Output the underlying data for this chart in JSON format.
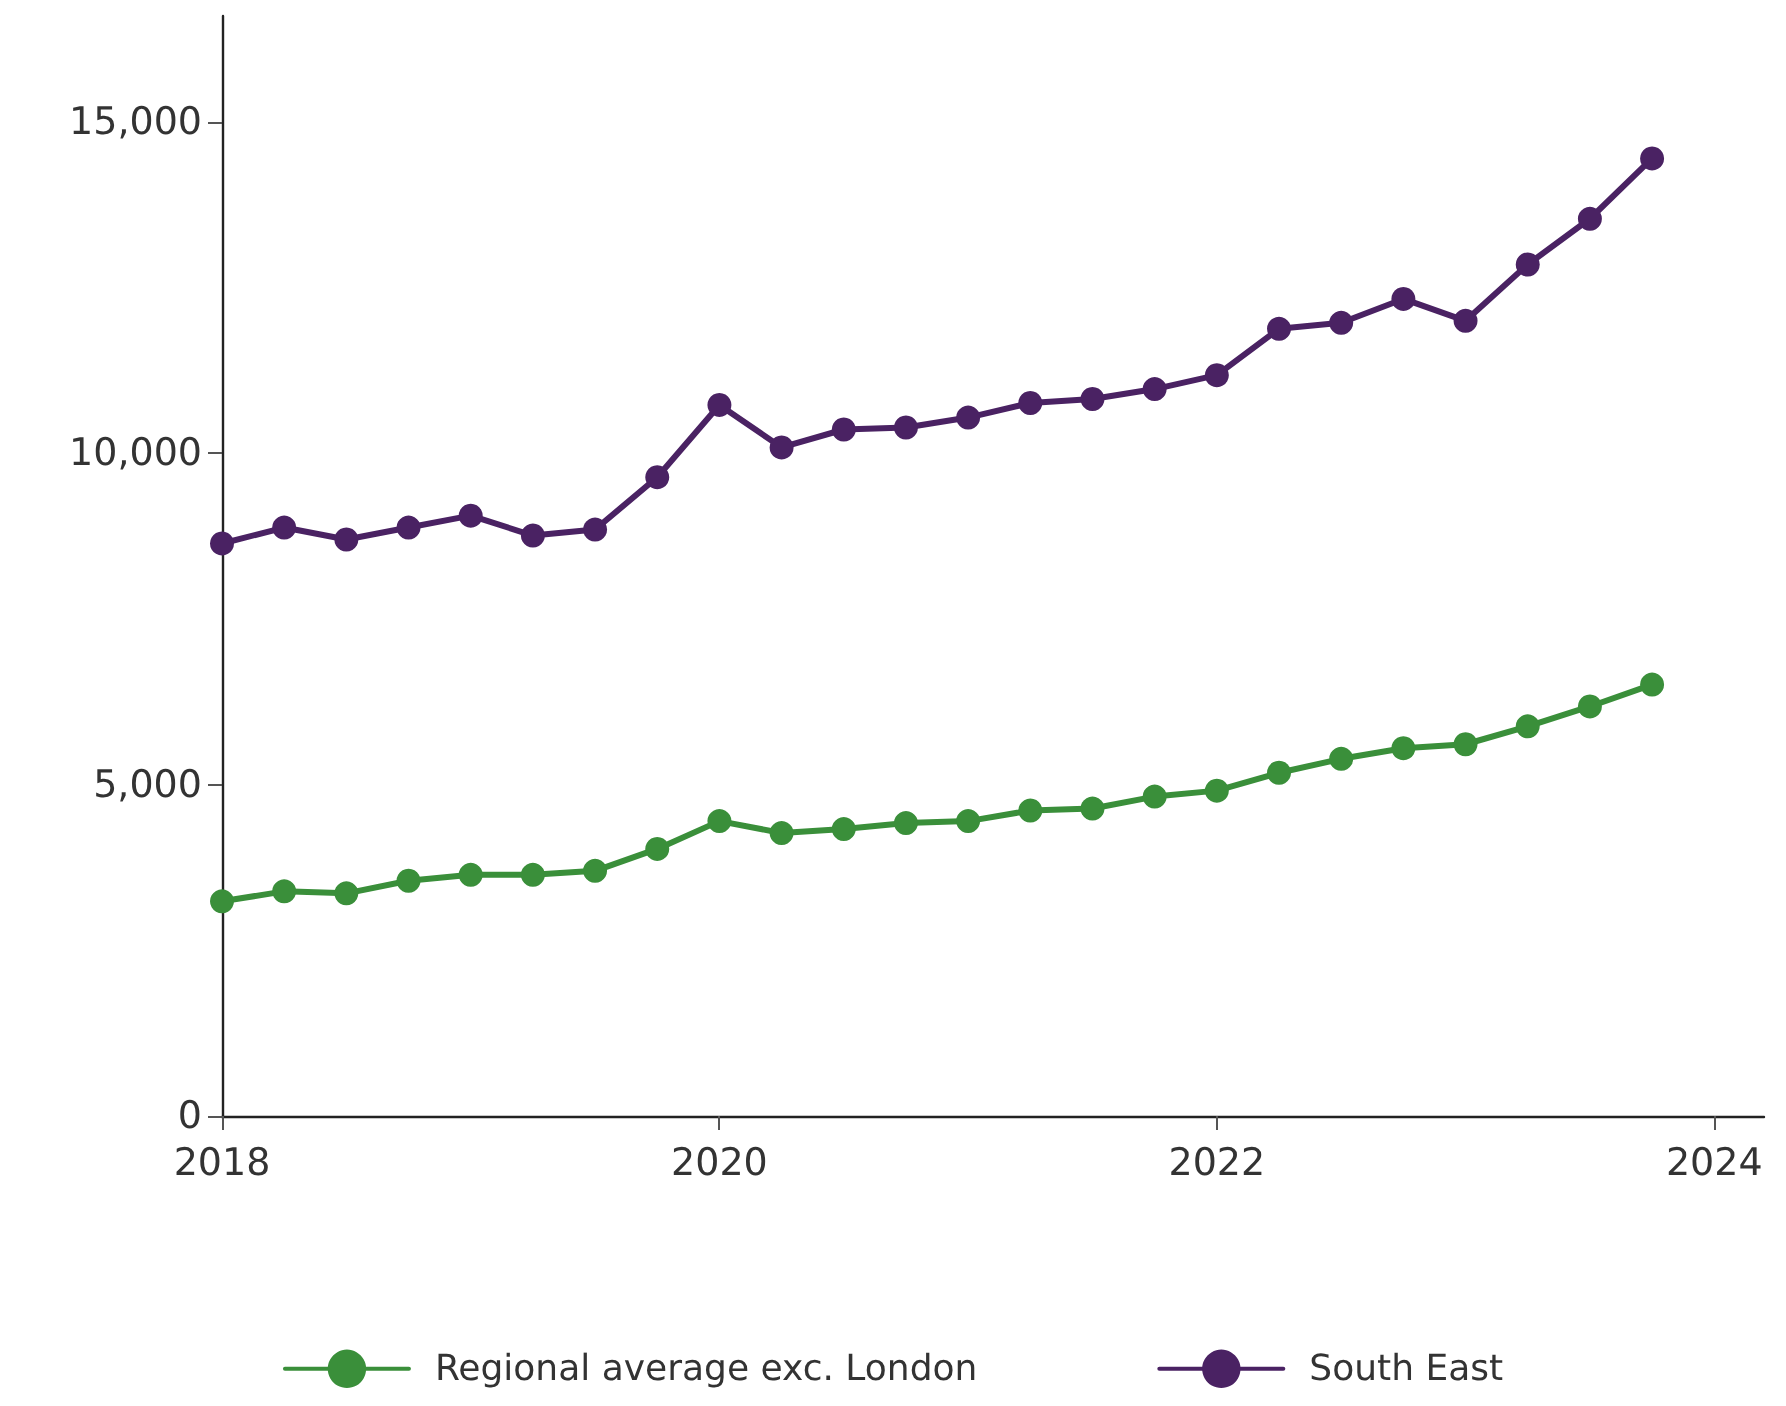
{
  "chart_data": {
    "type": "line",
    "x": [
      2018,
      2018.25,
      2018.5,
      2018.75,
      2019,
      2019.25,
      2019.5,
      2019.75,
      2020,
      2020.25,
      2020.5,
      2020.75,
      2021,
      2021.25,
      2021.5,
      2021.75,
      2022,
      2022.25,
      2022.5,
      2022.75,
      2023,
      2023.25,
      2023.5,
      2023.75
    ],
    "series": [
      {
        "name": "Regional average exc. London",
        "color": "#3a8f3a",
        "values": [
          3240,
          3390,
          3360,
          3550,
          3640,
          3640,
          3700,
          4030,
          4450,
          4270,
          4330,
          4420,
          4450,
          4610,
          4640,
          4820,
          4910,
          5180,
          5390,
          5550,
          5610,
          5880,
          6180,
          6510
        ]
      },
      {
        "name": "South East",
        "color": "#4a2263",
        "values": [
          8640,
          8880,
          8700,
          8880,
          9060,
          8760,
          8850,
          9640,
          10730,
          10090,
          10360,
          10390,
          10540,
          10760,
          10820,
          10970,
          11180,
          11880,
          11970,
          12330,
          12000,
          12850,
          13540,
          14450
        ]
      }
    ],
    "xlim": [
      2018,
      2024.2
    ],
    "xticks": [
      2018,
      2020,
      2022,
      2024
    ],
    "ylim": [
      0,
      16600
    ],
    "yticks": [
      0,
      {
        "value": 5000,
        "label": "5,000"
      },
      {
        "value": 10000,
        "label": "10,000"
      },
      {
        "value": 15000,
        "label": "15,000"
      }
    ],
    "grid": false,
    "legend": "bottom",
    "marker": "circle",
    "line_style": "solid"
  }
}
